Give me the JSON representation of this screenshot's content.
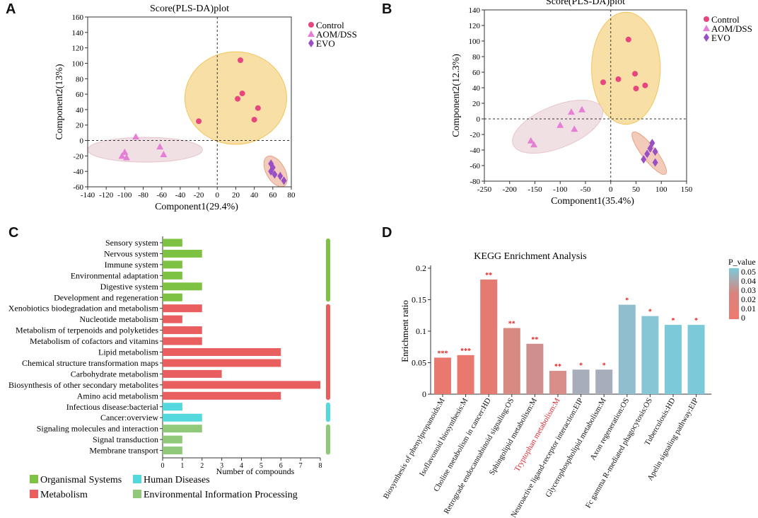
{
  "panels": {
    "A": "A",
    "B": "B",
    "C": "C",
    "D": "D"
  },
  "chart_data": [
    {
      "id": "A",
      "type": "scatter",
      "title": "Score(PLS-DA)plot",
      "xlabel": "Component1(29.4%)",
      "ylabel": "Component2(13%)",
      "xlim": [
        -140,
        80
      ],
      "ylim": [
        -60,
        160
      ],
      "xticks": [
        -140,
        -120,
        -100,
        -80,
        -60,
        -40,
        -20,
        0,
        20,
        40,
        60,
        80
      ],
      "yticks": [
        -60,
        -40,
        -20,
        0,
        20,
        40,
        60,
        80,
        100,
        120,
        140,
        160
      ],
      "legend": [
        "Control",
        "AOM/DSS",
        "EVO"
      ],
      "series": [
        {
          "name": "Control",
          "color": "#e8457f",
          "marker": "circle",
          "points": [
            [
              -20,
              25
            ],
            [
              22,
              54
            ],
            [
              27,
              61
            ],
            [
              25,
              104
            ],
            [
              40,
              27
            ],
            [
              44,
              42
            ]
          ],
          "ellipse": {
            "cx": 20,
            "cy": 55,
            "rx": 55,
            "ry": 60,
            "angle": 0,
            "color": "#f2c45c"
          }
        },
        {
          "name": "AOM/DSS",
          "color": "#e57fd6",
          "marker": "triangle",
          "points": [
            [
              -88,
              5
            ],
            [
              -103,
              -20
            ],
            [
              -100,
              -15
            ],
            [
              -98,
              -22
            ],
            [
              -62,
              -8
            ],
            [
              -58,
              -18
            ]
          ],
          "ellipse": {
            "cx": -78,
            "cy": -12,
            "rx": 62,
            "ry": 16,
            "angle": 0,
            "color": "#e6c6cc"
          }
        },
        {
          "name": "EVO",
          "color": "#9b4fc4",
          "marker": "diamond",
          "points": [
            [
              58,
              -30
            ],
            [
              60,
              -35
            ],
            [
              58,
              -40
            ],
            [
              62,
              -44
            ],
            [
              68,
              -46
            ],
            [
              72,
              -52
            ]
          ],
          "ellipse": {
            "cx": 63,
            "cy": -40,
            "rx": 10,
            "ry": 22,
            "angle": -30,
            "color": "#e8a184"
          }
        }
      ]
    },
    {
      "id": "B",
      "type": "scatter",
      "title": "Score(PLS-DA)plot",
      "xlabel": "Component1(35.4%)",
      "ylabel": "Component2(12.3%)",
      "xlim": [
        -250,
        150
      ],
      "ylim": [
        -80,
        140
      ],
      "xticks": [
        -250,
        -200,
        -150,
        -100,
        -50,
        0,
        50,
        100,
        150
      ],
      "yticks": [
        -80,
        -60,
        -40,
        -20,
        0,
        20,
        40,
        60,
        80,
        100,
        120,
        140
      ],
      "legend": [
        "Control",
        "AOM/DSS",
        "EVO"
      ],
      "series": [
        {
          "name": "Control",
          "color": "#e8457f",
          "marker": "circle",
          "points": [
            [
              35,
              102
            ],
            [
              48,
              58
            ],
            [
              -15,
              47
            ],
            [
              15,
              51
            ],
            [
              50,
              39
            ],
            [
              68,
              43
            ]
          ],
          "ellipse": {
            "cx": 30,
            "cy": 65,
            "rx": 68,
            "ry": 72,
            "angle": 0,
            "color": "#f2c45c"
          }
        },
        {
          "name": "AOM/DSS",
          "color": "#e57fd6",
          "marker": "triangle",
          "points": [
            [
              -158,
              -28
            ],
            [
              -152,
              -33
            ],
            [
              -100,
              -8
            ],
            [
              -78,
              9
            ],
            [
              -57,
              12
            ],
            [
              -72,
              -13
            ]
          ],
          "ellipse": {
            "cx": -105,
            "cy": -10,
            "rx": 95,
            "ry": 27,
            "angle": -22,
            "color": "#e6c6cc"
          }
        },
        {
          "name": "EVO",
          "color": "#9b4fc4",
          "marker": "diamond",
          "points": [
            [
              65,
              -52
            ],
            [
              72,
              -45
            ],
            [
              78,
              -38
            ],
            [
              82,
              -31
            ],
            [
              88,
              -56
            ],
            [
              88,
              -42
            ]
          ],
          "ellipse": {
            "cx": 76,
            "cy": -44,
            "rx": 14,
            "ry": 34,
            "angle": -38,
            "color": "#e8a184"
          }
        }
      ]
    },
    {
      "id": "C",
      "type": "bar",
      "orientation": "horizontal",
      "xlabel": "Number of compounds",
      "xlim": [
        0,
        8
      ],
      "xticks": [
        0,
        1,
        2,
        3,
        4,
        5,
        6,
        7,
        8
      ],
      "categories": [
        "Sensory system",
        "Nervous system",
        "Immune system",
        "Environmental adaptation",
        "Digestive system",
        "Development and regeneration",
        "Xenobiotics biodegradation and metabolism",
        "Nucleotide metabolism",
        "Metabolism of terpenoids and polyketides",
        "Metabolism of cofactors and vitamins",
        "Lipid metabolism",
        "Chemical structure transformation maps",
        "Carbohydrate metabolism",
        "Biosynthesis of other secondary metabolites",
        "Amino acid metabolism",
        "Infectious disease:bacterial",
        "Cancer:overview",
        "Signaling molecules and interaction",
        "Signal transduction",
        "Membrane transport"
      ],
      "values": [
        1,
        2,
        1,
        1,
        2,
        1,
        2,
        1,
        2,
        2,
        6,
        6,
        3,
        8,
        6,
        1,
        2,
        2,
        1,
        1
      ],
      "groups": [
        0,
        0,
        0,
        0,
        0,
        0,
        1,
        1,
        1,
        1,
        1,
        1,
        1,
        1,
        1,
        2,
        2,
        3,
        3,
        3
      ],
      "group_names": [
        "Organismal Systems",
        "Metabolism",
        "Human Diseases",
        "Environmental Information Processing"
      ],
      "group_colors": [
        "#7dc242",
        "#e95f5f",
        "#52d8dd",
        "#8fc979"
      ]
    },
    {
      "id": "D",
      "type": "bar",
      "title": "KEGG Enrichment Analysis",
      "ylabel": "Enrichment ratio",
      "ylim": [
        0,
        0.2
      ],
      "yticks": [
        0,
        0.05,
        0.1,
        0.15,
        0.2
      ],
      "ytick_labels": [
        "0",
        "0.05",
        "0.1",
        "0.15",
        "0.2"
      ],
      "categories": [
        "Biosynthesis of phenylpropanoids:M",
        "Isoflavonoid biosynthesis:M",
        "Choline metabolism in cancer:HD",
        "Retrograde endocannabinoid signaling:OS",
        "Sphingolipid metabolism:M",
        "Tryptophan metabolism:M",
        "Neuroactive ligand-receptor interaction:EIP",
        "Glycerophospholipid metabolism:M",
        "Axon regeneration:OS",
        "Fc gamma R-mediated phagocytosis:OS",
        "Tuberculosis:HD",
        "Apelin signaling pathway:EIP"
      ],
      "values": [
        0.058,
        0.062,
        0.182,
        0.105,
        0.08,
        0.037,
        0.039,
        0.039,
        0.142,
        0.124,
        0.11,
        0.11
      ],
      "significance": [
        "***",
        "***",
        "**",
        "**",
        "**",
        "**",
        "*",
        "*",
        "*",
        "*",
        "*",
        "*"
      ],
      "bar_colors": [
        "#e9796f",
        "#e9796f",
        "#e57b70",
        "#d88a82",
        "#d08f8f",
        "#da8e8a",
        "#a7adbb",
        "#a7adbb",
        "#90bece",
        "#86c6d5",
        "#7ccad9",
        "#7ccad9"
      ],
      "highlight_category": "Tryptophan metabolism:M",
      "highlight_color": "#d7282f",
      "star_color": "#e02020",
      "colorbar": {
        "title": "P_value",
        "ticks": [
          "0.05",
          "0.04",
          "0.03",
          "0.02",
          "0.01",
          "0"
        ],
        "colors": [
          "#7ccad9",
          "#d8837c",
          "#f07a6e"
        ]
      }
    }
  ]
}
